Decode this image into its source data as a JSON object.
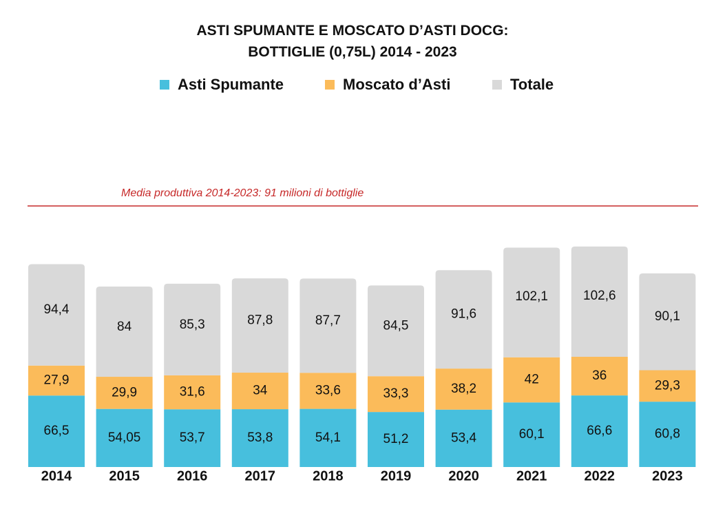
{
  "title_line1": "ASTI SPUMANTE E MOSCATO D’ASTI DOCG:",
  "title_line2": "BOTTIGLIE (0,75L) 2014 - 2023",
  "legend": [
    {
      "label": "Asti Spumante",
      "color": "#47bfdd"
    },
    {
      "label": "Moscato d’Asti",
      "color": "#fbbb5a"
    },
    {
      "label": "Totale",
      "color": "#d9d9d9"
    }
  ],
  "average_line": {
    "label": "Media produttiva 2014-2023: 91 milioni di bottiglie",
    "value": 91,
    "color": "#c62828"
  },
  "chart_data": {
    "type": "bar",
    "stacked": true,
    "categories": [
      "2014",
      "2015",
      "2016",
      "2017",
      "2018",
      "2019",
      "2020",
      "2021",
      "2022",
      "2023"
    ],
    "series": [
      {
        "name": "Asti Spumante",
        "color": "#47bfdd",
        "values": [
          66.5,
          54.05,
          53.7,
          53.8,
          54.1,
          51.2,
          53.4,
          60.1,
          66.6,
          60.8
        ],
        "labels": [
          "66,5",
          "54,05",
          "53,7",
          "53,8",
          "54,1",
          "51,2",
          "53,4",
          "60,1",
          "66,6",
          "60,8"
        ]
      },
      {
        "name": "Moscato d’Asti",
        "color": "#fbbb5a",
        "values": [
          27.9,
          29.9,
          31.6,
          34,
          33.6,
          33.3,
          38.2,
          42,
          36,
          29.3
        ],
        "labels": [
          "27,9",
          "29,9",
          "31,6",
          "34",
          "33,6",
          "33,3",
          "38,2",
          "42",
          "36",
          "29,3"
        ]
      },
      {
        "name": "Totale",
        "color": "#d9d9d9",
        "values": [
          94.4,
          84,
          85.3,
          87.8,
          87.7,
          84.5,
          91.6,
          102.1,
          102.6,
          90.1
        ],
        "labels": [
          "94,4",
          "84",
          "85,3",
          "87,8",
          "87,7",
          "84,5",
          "91,6",
          "102,1",
          "102,6",
          "90,1"
        ]
      }
    ],
    "axis_labels_bold": true,
    "grid": false
  }
}
